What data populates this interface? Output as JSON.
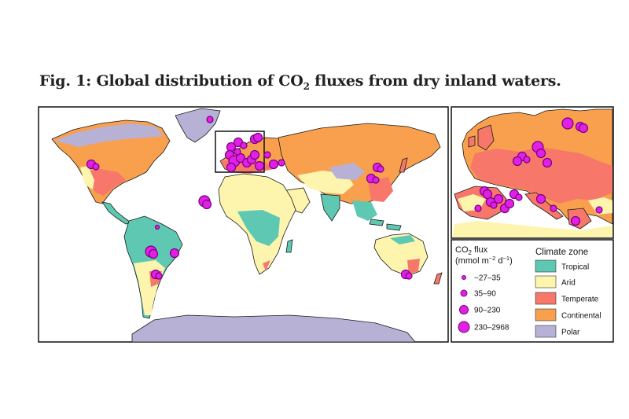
{
  "figure": {
    "title_prefix": "Fig. 1: Global distribution of CO",
    "title_sub": "2",
    "title_suffix": " fluxes from dry inland waters."
  },
  "legend_flux": {
    "title_line1_prefix": "CO",
    "title_line1_sub": "2",
    "title_line1_suffix": " flux",
    "title_line2": "(mmol m",
    "title_line2_exp1": "−2",
    "title_line2_mid": " d",
    "title_line2_exp2": "−1",
    "title_line2_end": ")",
    "classes": [
      "−27–35",
      "35–90",
      "90–230",
      "230–2968"
    ]
  },
  "legend_climate": {
    "title": "Climate zone",
    "zones": [
      {
        "label": "Tropical",
        "color": "#5fc8b2"
      },
      {
        "label": "Arid",
        "color": "#fdf5ae"
      },
      {
        "label": "Temperate",
        "color": "#f7776a"
      },
      {
        "label": "Continental",
        "color": "#f8a04e"
      },
      {
        "label": "Polar",
        "color": "#b7b1d6"
      }
    ]
  },
  "colors": {
    "marker_fill": "#e020e6",
    "marker_stroke": "#7a007e",
    "coastline": "#1a1a1a"
  }
}
